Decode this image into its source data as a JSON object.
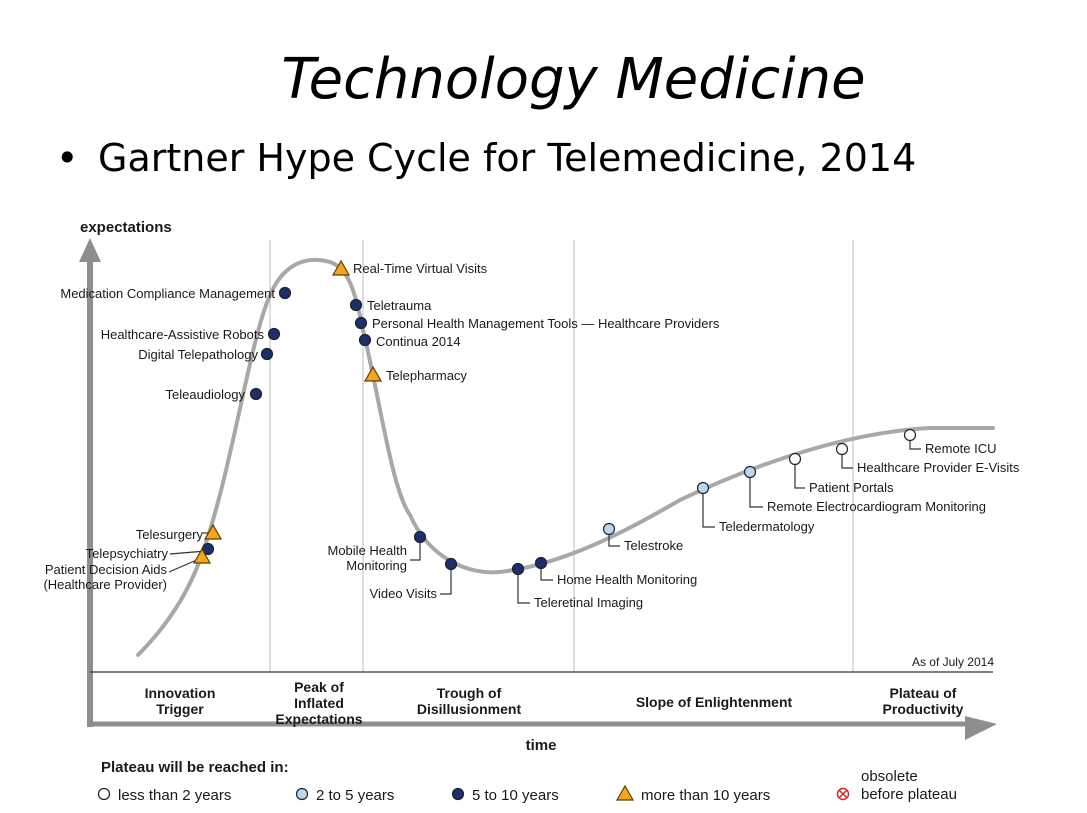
{
  "slide": {
    "title": "Technology Medicine",
    "bullet": "Gartner Hype Cycle for Telemedicine, 2014"
  },
  "chart_data": {
    "type": "hype-cycle",
    "y_axis_label": "expectations",
    "x_axis_label": "time",
    "as_of": "As of July 2014",
    "phases": [
      [
        "Innovation",
        "Trigger"
      ],
      [
        "Peak of",
        "Inflated",
        "Expectations"
      ],
      [
        "Trough of",
        "Disillusionment"
      ],
      [
        "Slope of Enlightenment"
      ],
      [
        "Plateau of",
        "Productivity"
      ]
    ],
    "legend": {
      "title": "Plateau will be reached in:",
      "items": [
        {
          "key": "lt2",
          "label": "less than 2 years",
          "marker": "open-circle",
          "color": "#ffffff"
        },
        {
          "key": "y2to5",
          "label": "2 to 5 years",
          "marker": "light-blue-circle",
          "color": "#b9d7ef"
        },
        {
          "key": "y5to10",
          "label": "5 to 10 years",
          "marker": "dark-blue-circle",
          "color": "#1b2f6e"
        },
        {
          "key": "gt10",
          "label": "more than 10 years",
          "marker": "orange-triangle",
          "color": "#f3a81c"
        },
        {
          "key": "obsolete",
          "label": [
            "obsolete",
            "before plateau"
          ],
          "marker": "red-crossed-circle",
          "color": "#d6262b"
        }
      ]
    },
    "technologies": [
      {
        "name": "Telesurgery",
        "phase": "Innovation Trigger",
        "plateau": "gt10"
      },
      {
        "name": "Telepsychiatry",
        "phase": "Innovation Trigger",
        "plateau": "y5to10"
      },
      {
        "name": [
          "Patient Decision Aids",
          "(Healthcare Provider)"
        ],
        "phase": "Innovation Trigger",
        "plateau": "gt10"
      },
      {
        "name": "Teleaudiology",
        "phase": "Innovation Trigger",
        "plateau": "y5to10"
      },
      {
        "name": "Digital Telepathology",
        "phase": "Innovation Trigger",
        "plateau": "y5to10"
      },
      {
        "name": "Healthcare-Assistive Robots",
        "phase": "Innovation Trigger",
        "plateau": "y5to10"
      },
      {
        "name": "Medication Compliance Management",
        "phase": "Innovation Trigger",
        "plateau": "y5to10"
      },
      {
        "name": "Real-Time Virtual Visits",
        "phase": "Peak of Inflated Expectations",
        "plateau": "gt10"
      },
      {
        "name": "Teletrauma",
        "phase": "Peak of Inflated Expectations",
        "plateau": "y5to10"
      },
      {
        "name": "Personal Health Management Tools — Healthcare Providers",
        "phase": "Peak of Inflated Expectations",
        "plateau": "y5to10"
      },
      {
        "name": "Continua 2014",
        "phase": "Peak of Inflated Expectations",
        "plateau": "y5to10"
      },
      {
        "name": "Telepharmacy",
        "phase": "Peak of Inflated Expectations",
        "plateau": "gt10"
      },
      {
        "name": [
          "Mobile Health",
          "Monitoring"
        ],
        "phase": "Trough of Disillusionment",
        "plateau": "y5to10"
      },
      {
        "name": "Video Visits",
        "phase": "Trough of Disillusionment",
        "plateau": "y5to10"
      },
      {
        "name": "Teleretinal Imaging",
        "phase": "Trough of Disillusionment",
        "plateau": "y5to10"
      },
      {
        "name": "Home Health Monitoring",
        "phase": "Trough of Disillusionment",
        "plateau": "y5to10"
      },
      {
        "name": "Telestroke",
        "phase": "Slope of Enlightenment",
        "plateau": "y2to5"
      },
      {
        "name": "Teledermatology",
        "phase": "Slope of Enlightenment",
        "plateau": "y2to5"
      },
      {
        "name": "Remote Electrocardiogram Monitoring",
        "phase": "Slope of Enlightenment",
        "plateau": "y2to5"
      },
      {
        "name": "Patient Portals",
        "phase": "Slope of Enlightenment",
        "plateau": "lt2"
      },
      {
        "name": "Healthcare Provider E-Visits",
        "phase": "Slope of Enlightenment",
        "plateau": "lt2"
      },
      {
        "name": "Remote ICU",
        "phase": "Slope of Enlightenment",
        "plateau": "lt2"
      }
    ]
  }
}
